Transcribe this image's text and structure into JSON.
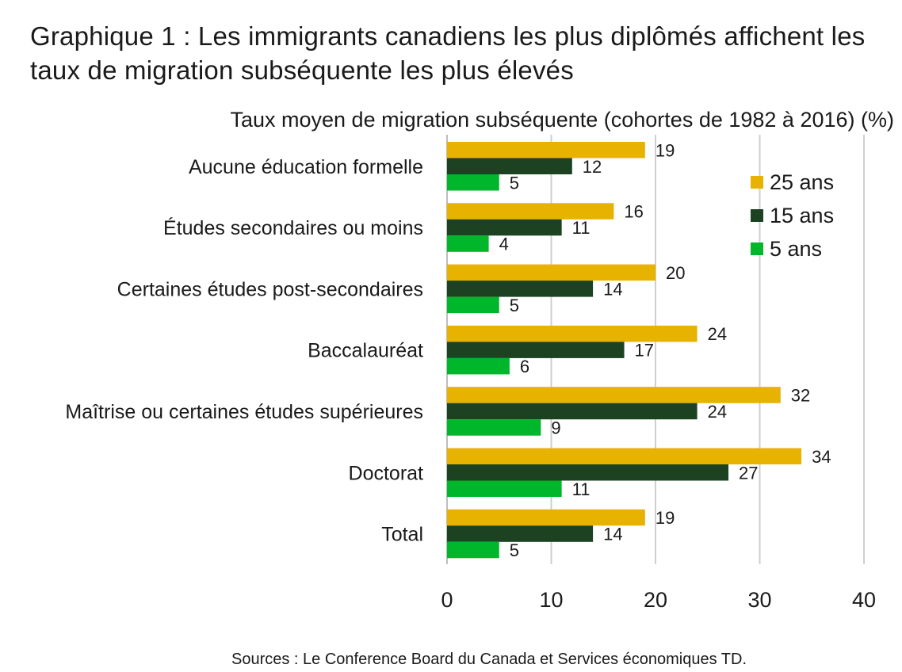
{
  "title": "Graphique 1 : Les immigrants canadiens les plus diplômés affichent les taux de migration subséquente les plus élevés",
  "source": "Sources : Le Conference Board du Canada et Services économiques TD.",
  "chart_data": {
    "type": "bar",
    "orientation": "horizontal",
    "subtitle": "Taux moyen de migration subséquente (cohortes de 1982 à 2016) (%)",
    "categories": [
      "Aucune éducation formelle",
      "Études secondaires ou moins",
      "Certaines études post-secondaires",
      "Baccalauréat",
      "Maîtrise ou certaines études supérieures",
      "Doctorat",
      "Total"
    ],
    "series": [
      {
        "name": "25 ans",
        "color": "#e8b200",
        "values": [
          19,
          16,
          20,
          24,
          32,
          34,
          19
        ]
      },
      {
        "name": "15 ans",
        "color": "#1c4221",
        "values": [
          12,
          11,
          14,
          17,
          24,
          27,
          14
        ]
      },
      {
        "name": "5 ans",
        "color": "#00b62b",
        "values": [
          5,
          4,
          5,
          6,
          9,
          11,
          5
        ]
      }
    ],
    "xlim": [
      0,
      40
    ],
    "xticks": [
      0,
      10,
      20,
      30,
      40
    ],
    "grid": true,
    "legend_position": "top-right",
    "data_labels": true
  }
}
